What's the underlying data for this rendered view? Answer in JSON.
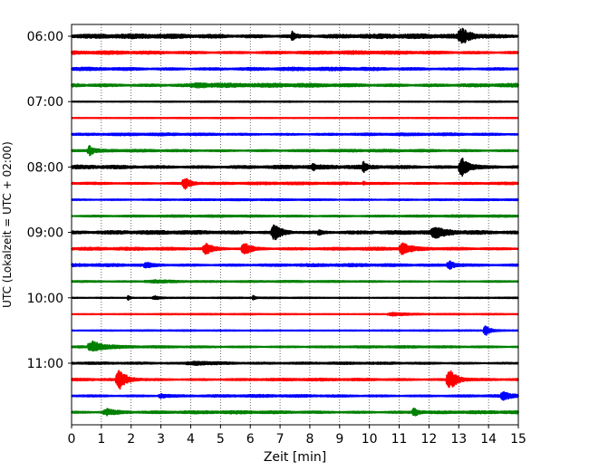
{
  "chart_data": {
    "type": "line",
    "subtype": "helicorder",
    "xlabel": "Zeit  [min]",
    "ylabel": "UTC (Lokalzeit = UTC + 02:00)",
    "xlim": [
      0,
      15
    ],
    "x_ticks": [
      "0",
      "1",
      "2",
      "3",
      "4",
      "5",
      "6",
      "7",
      "8",
      "9",
      "10",
      "11",
      "12",
      "13",
      "14",
      "15"
    ],
    "y_ticks": [
      {
        "label": "06:00",
        "trace": 0
      },
      {
        "label": "07:00",
        "trace": 4
      },
      {
        "label": "08:00",
        "trace": 8
      },
      {
        "label": "09:00",
        "trace": 12
      },
      {
        "label": "10:00",
        "trace": 16
      },
      {
        "label": "11:00",
        "trace": 20
      }
    ],
    "grid": "vertical dotted at each minute",
    "trace_minutes": 15,
    "color_cycle": [
      "#000000",
      "#ff0000",
      "#0000ff",
      "#008000"
    ],
    "series": [
      {
        "start": "06:00",
        "base_amp": 0.22,
        "events": [
          {
            "t": 7.4,
            "a": 0.5,
            "w": 0.15
          },
          {
            "t": 13.1,
            "a": 0.85,
            "w": 0.5
          }
        ]
      },
      {
        "start": "06:15",
        "base_amp": 0.16,
        "events": []
      },
      {
        "start": "06:30",
        "base_amp": 0.16,
        "events": []
      },
      {
        "start": "06:45",
        "base_amp": 0.18,
        "events": [
          {
            "t": 4.3,
            "a": 0.2,
            "w": 1.2
          }
        ]
      },
      {
        "start": "07:00",
        "base_amp": 0.05,
        "events": []
      },
      {
        "start": "07:15",
        "base_amp": 0.04,
        "events": []
      },
      {
        "start": "07:30",
        "base_amp": 0.12,
        "events": []
      },
      {
        "start": "07:45",
        "base_amp": 0.12,
        "events": [
          {
            "t": 0.6,
            "a": 0.55,
            "w": 0.25
          }
        ]
      },
      {
        "start": "08:00",
        "base_amp": 0.18,
        "events": [
          {
            "t": 8.1,
            "a": 0.4,
            "w": 0.15
          },
          {
            "t": 9.8,
            "a": 0.6,
            "w": 0.15
          },
          {
            "t": 13.1,
            "a": 1.2,
            "w": 0.4
          }
        ]
      },
      {
        "start": "08:15",
        "base_amp": 0.12,
        "events": [
          {
            "t": 3.8,
            "a": 0.7,
            "w": 0.35
          },
          {
            "t": 9.8,
            "a": 0.2,
            "w": 0.1
          }
        ]
      },
      {
        "start": "08:30",
        "base_amp": 0.08,
        "events": []
      },
      {
        "start": "08:45",
        "base_amp": 0.1,
        "events": []
      },
      {
        "start": "09:00",
        "base_amp": 0.18,
        "events": [
          {
            "t": 6.8,
            "a": 1.0,
            "w": 0.4
          },
          {
            "t": 8.3,
            "a": 0.3,
            "w": 0.15
          },
          {
            "t": 12.2,
            "a": 0.55,
            "w": 0.6
          }
        ]
      },
      {
        "start": "09:15",
        "base_amp": 0.14,
        "events": [
          {
            "t": 4.5,
            "a": 0.65,
            "w": 0.4
          },
          {
            "t": 5.8,
            "a": 0.7,
            "w": 0.4
          },
          {
            "t": 11.1,
            "a": 0.7,
            "w": 0.4
          }
        ]
      },
      {
        "start": "09:30",
        "base_amp": 0.14,
        "events": [
          {
            "t": 2.5,
            "a": 0.3,
            "w": 0.3
          },
          {
            "t": 12.7,
            "a": 0.45,
            "w": 0.4
          }
        ]
      },
      {
        "start": "09:45",
        "base_amp": 0.08,
        "events": [
          {
            "t": 2.8,
            "a": 0.15,
            "w": 1.5
          }
        ]
      },
      {
        "start": "10:00",
        "base_amp": 0.05,
        "events": [
          {
            "t": 1.9,
            "a": 0.35,
            "w": 0.1
          },
          {
            "t": 2.8,
            "a": 0.2,
            "w": 0.4
          },
          {
            "t": 6.1,
            "a": 0.3,
            "w": 0.1
          }
        ]
      },
      {
        "start": "10:15",
        "base_amp": 0.05,
        "events": [
          {
            "t": 10.8,
            "a": 0.2,
            "w": 0.8
          }
        ]
      },
      {
        "start": "10:30",
        "base_amp": 0.05,
        "events": [
          {
            "t": 13.9,
            "a": 0.6,
            "w": 0.3
          }
        ]
      },
      {
        "start": "10:45",
        "base_amp": 0.1,
        "events": [
          {
            "t": 0.7,
            "a": 0.7,
            "w": 0.6
          }
        ]
      },
      {
        "start": "11:00",
        "base_amp": 0.1,
        "events": [
          {
            "t": 4.2,
            "a": 0.2,
            "w": 1.5
          }
        ]
      },
      {
        "start": "11:15",
        "base_amp": 0.12,
        "events": [
          {
            "t": 1.6,
            "a": 1.2,
            "w": 0.45
          },
          {
            "t": 12.7,
            "a": 1.2,
            "w": 0.45
          }
        ]
      },
      {
        "start": "11:30",
        "base_amp": 0.12,
        "events": [
          {
            "t": 3.0,
            "a": 0.25,
            "w": 0.4
          },
          {
            "t": 14.5,
            "a": 0.45,
            "w": 0.4
          }
        ]
      },
      {
        "start": "11:45",
        "base_amp": 0.14,
        "events": [
          {
            "t": 1.2,
            "a": 0.35,
            "w": 0.6
          },
          {
            "t": 11.5,
            "a": 0.55,
            "w": 0.25
          }
        ]
      }
    ]
  }
}
